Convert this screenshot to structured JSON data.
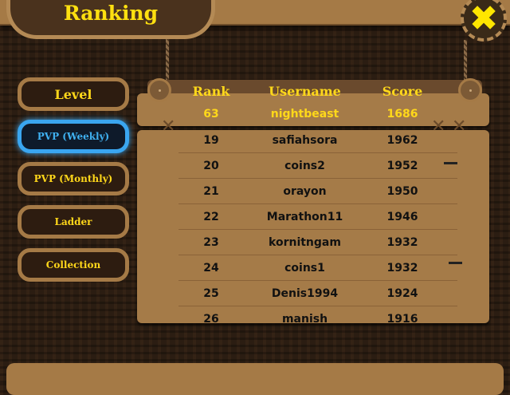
{
  "title": "Ranking",
  "close_icon": "close-x-icon",
  "tabs": [
    {
      "label": "Level",
      "active": false
    },
    {
      "label": "PVP (Weekly)",
      "active": true
    },
    {
      "label": "PVP (Monthly)",
      "active": false
    },
    {
      "label": "Ladder",
      "active": false
    },
    {
      "label": "Collection",
      "active": false
    }
  ],
  "table": {
    "headers": {
      "rank": "Rank",
      "username": "Username",
      "score": "Score"
    },
    "me": {
      "rank": "63",
      "username": "nightbeast",
      "score": "1686"
    },
    "rows": [
      {
        "rank": "19",
        "username": "safiahsora",
        "score": "1962"
      },
      {
        "rank": "20",
        "username": "coins2",
        "score": "1952"
      },
      {
        "rank": "21",
        "username": "orayon",
        "score": "1950"
      },
      {
        "rank": "22",
        "username": "Marathon11",
        "score": "1946"
      },
      {
        "rank": "23",
        "username": "kornitngam",
        "score": "1932"
      },
      {
        "rank": "24",
        "username": "coins1",
        "score": "1932"
      },
      {
        "rank": "25",
        "username": "Denis1994",
        "score": "1924"
      },
      {
        "rank": "26",
        "username": "manish",
        "score": "1916"
      }
    ]
  },
  "colors": {
    "accent": "#ffd81a",
    "active_tab": "#3aa6f0",
    "wood": "#a57b48"
  }
}
